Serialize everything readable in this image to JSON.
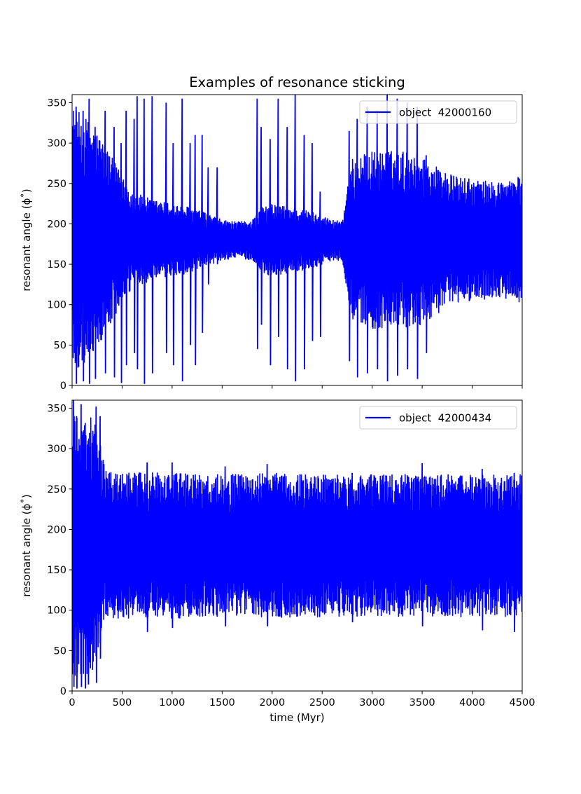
{
  "figure": {
    "title": "Examples of resonance sticking",
    "accent_color": "#0000ff"
  },
  "chart_data": [
    {
      "type": "line",
      "title": "Examples of resonance sticking",
      "xlabel": "",
      "ylabel": "resonant angle (ϕ˚)",
      "xlim": [
        0,
        4500
      ],
      "ylim": [
        0,
        360
      ],
      "xticks": [
        0,
        500,
        1000,
        1500,
        2000,
        2500,
        3000,
        3500,
        4000,
        4500
      ],
      "yticks": [
        0,
        50,
        100,
        150,
        200,
        250,
        300,
        350
      ],
      "show_xtick_labels": false,
      "grid": false,
      "legend_position": "top-right",
      "series": [
        {
          "name": "object  42000160",
          "color": "#0000ff",
          "envelope": {
            "x": [
              0,
              150,
              300,
              450,
              600,
              800,
              1000,
              1200,
              1400,
              1500,
              1650,
              1800,
              1900,
              2000,
              2200,
              2400,
              2600,
              2700,
              2800,
              3000,
              3200,
              3400,
              3500,
              3600,
              3800,
              4000,
              4200,
              4400,
              4500
            ],
            "center": [
              180,
              180,
              180,
              180,
              180,
              180,
              180,
              180,
              180,
              180,
              180,
              180,
              180,
              180,
              180,
              180,
              180,
              180,
              180,
              180,
              180,
              180,
              180,
              180,
              180,
              180,
              180,
              180,
              180
            ],
            "half_width": [
              165,
              150,
              125,
              90,
              60,
              50,
              45,
              40,
              30,
              25,
              22,
              25,
              40,
              45,
              40,
              35,
              25,
              25,
              100,
              110,
              110,
              110,
              105,
              95,
              80,
              75,
              72,
              75,
              80
            ]
          },
          "spikes": [
            {
              "x": 40,
              "lo": 2,
              "hi": 345
            },
            {
              "x": 110,
              "lo": 5,
              "hi": 340
            },
            {
              "x": 170,
              "lo": 2,
              "hi": 355
            },
            {
              "x": 230,
              "lo": 8,
              "hi": 320
            },
            {
              "x": 330,
              "lo": 15,
              "hi": 340
            },
            {
              "x": 420,
              "lo": 10,
              "hi": 320
            },
            {
              "x": 490,
              "lo": 3,
              "hi": 300
            },
            {
              "x": 540,
              "lo": 25,
              "hi": 340
            },
            {
              "x": 620,
              "lo": 40,
              "hi": 330
            },
            {
              "x": 650,
              "lo": 20,
              "hi": 358
            },
            {
              "x": 720,
              "lo": 2,
              "hi": 355
            },
            {
              "x": 800,
              "lo": 15,
              "hi": 358
            },
            {
              "x": 940,
              "lo": 40,
              "hi": 350
            },
            {
              "x": 1010,
              "lo": 25,
              "hi": 300
            },
            {
              "x": 1100,
              "lo": 5,
              "hi": 355
            },
            {
              "x": 1180,
              "lo": 50,
              "hi": 300
            },
            {
              "x": 1230,
              "lo": 25,
              "hi": 310
            },
            {
              "x": 1300,
              "lo": 65,
              "hi": 310
            },
            {
              "x": 1360,
              "lo": 125,
              "hi": 270
            },
            {
              "x": 1450,
              "lo": 150,
              "hi": 270
            },
            {
              "x": 1850,
              "lo": 45,
              "hi": 355
            },
            {
              "x": 1890,
              "lo": 75,
              "hi": 320
            },
            {
              "x": 1980,
              "lo": 25,
              "hi": 305
            },
            {
              "x": 2060,
              "lo": 60,
              "hi": 355
            },
            {
              "x": 2150,
              "lo": 20,
              "hi": 320
            },
            {
              "x": 2230,
              "lo": 5,
              "hi": 360
            },
            {
              "x": 2320,
              "lo": 20,
              "hi": 310
            },
            {
              "x": 2400,
              "lo": 55,
              "hi": 300
            },
            {
              "x": 2480,
              "lo": 60,
              "hi": 240
            },
            {
              "x": 2770,
              "lo": 30,
              "hi": 315
            },
            {
              "x": 2850,
              "lo": 10,
              "hi": 330
            },
            {
              "x": 2950,
              "lo": 15,
              "hi": 345
            },
            {
              "x": 3050,
              "lo": 20,
              "hi": 340
            },
            {
              "x": 3150,
              "lo": 5,
              "hi": 360
            },
            {
              "x": 3250,
              "lo": 12,
              "hi": 355
            },
            {
              "x": 3350,
              "lo": 20,
              "hi": 350
            },
            {
              "x": 3450,
              "lo": 8,
              "hi": 345
            },
            {
              "x": 3540,
              "lo": 40,
              "hi": 285
            }
          ]
        }
      ]
    },
    {
      "type": "line",
      "title": "",
      "xlabel": "time (Myr)",
      "ylabel": "resonant angle (ϕ˚)",
      "xlim": [
        0,
        4500
      ],
      "ylim": [
        0,
        360
      ],
      "xticks": [
        0,
        500,
        1000,
        1500,
        2000,
        2500,
        3000,
        3500,
        4000,
        4500
      ],
      "yticks": [
        0,
        50,
        100,
        150,
        200,
        250,
        300,
        350
      ],
      "show_xtick_labels": true,
      "grid": false,
      "legend_position": "top-right",
      "series": [
        {
          "name": "object  42000434",
          "color": "#0000ff",
          "envelope": {
            "x": [
              0,
              100,
              200,
              280,
              330,
              500,
              1000,
              1500,
              2000,
              2500,
              3000,
              3500,
              4000,
              4500
            ],
            "center": [
              180,
              180,
              180,
              180,
              180,
              180,
              180,
              180,
              180,
              180,
              180,
              180,
              180,
              180
            ],
            "half_width": [
              160,
              165,
              160,
              130,
              92,
              90,
              90,
              88,
              90,
              88,
              88,
              88,
              88,
              88
            ]
          },
          "spikes": [
            {
              "x": 15,
              "lo": 5,
              "hi": 360
            },
            {
              "x": 45,
              "lo": 3,
              "hi": 340
            },
            {
              "x": 90,
              "lo": 5,
              "hi": 355
            },
            {
              "x": 130,
              "lo": 3,
              "hi": 320
            },
            {
              "x": 160,
              "lo": 8,
              "hi": 310
            },
            {
              "x": 240,
              "lo": 10,
              "hi": 352
            },
            {
              "x": 280,
              "lo": 40,
              "hi": 340
            },
            {
              "x": 750,
              "lo": 73,
              "hi": 283
            },
            {
              "x": 1000,
              "lo": 78,
              "hi": 283
            },
            {
              "x": 1530,
              "lo": 80,
              "hi": 278
            },
            {
              "x": 1950,
              "lo": 80,
              "hi": 281
            },
            {
              "x": 2800,
              "lo": 85,
              "hi": 270
            },
            {
              "x": 3500,
              "lo": 80,
              "hi": 282
            },
            {
              "x": 4100,
              "lo": 75,
              "hi": 275
            },
            {
              "x": 4420,
              "lo": 73,
              "hi": 270
            }
          ]
        }
      ]
    }
  ]
}
